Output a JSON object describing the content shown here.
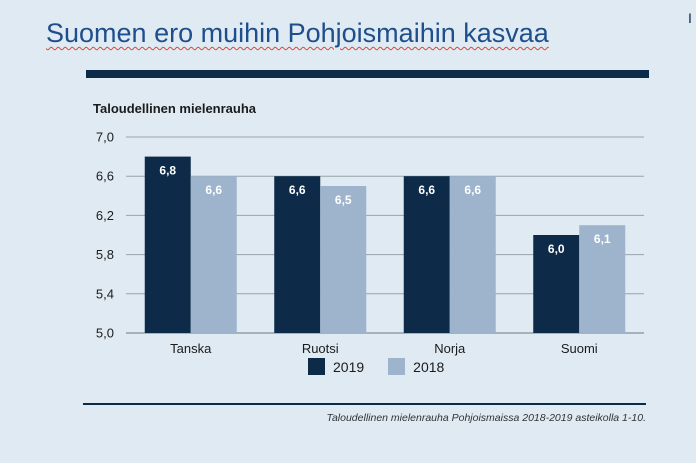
{
  "slide": {
    "title": "Suomen ero muihin Pohjoismaihin kasvaa",
    "corner_glyph": "I",
    "footnote": "Taloudellinen mielenrauha Pohjoismaissa 2018-2019 asteikolla 1-10."
  },
  "colors": {
    "background": "#dfeaf3",
    "title": "#1f4e8c",
    "series_2019": "#0d2a49",
    "series_2018": "#9db4cc",
    "rule": "#0d2a49"
  },
  "chart_data": {
    "type": "bar",
    "title": "Taloudellinen mielenrauha",
    "categories": [
      "Tanska",
      "Ruotsi",
      "Norja",
      "Suomi"
    ],
    "series": [
      {
        "name": "2019",
        "values": [
          6.8,
          6.6,
          6.6,
          6.0
        ],
        "labels": [
          "6,8",
          "6,6",
          "6,6",
          "6,0"
        ]
      },
      {
        "name": "2018",
        "values": [
          6.6,
          6.5,
          6.6,
          6.1
        ],
        "labels": [
          "6,6",
          "6,5",
          "6,6",
          "6,1"
        ]
      }
    ],
    "y_ticks": [
      5.0,
      5.4,
      5.8,
      6.2,
      6.6,
      7.0
    ],
    "y_tick_labels": [
      "5,0",
      "5,4",
      "5,8",
      "6,2",
      "6,6",
      "7,0"
    ],
    "ylim": [
      5.0,
      7.0
    ],
    "grid": true,
    "legend_position": "bottom"
  }
}
